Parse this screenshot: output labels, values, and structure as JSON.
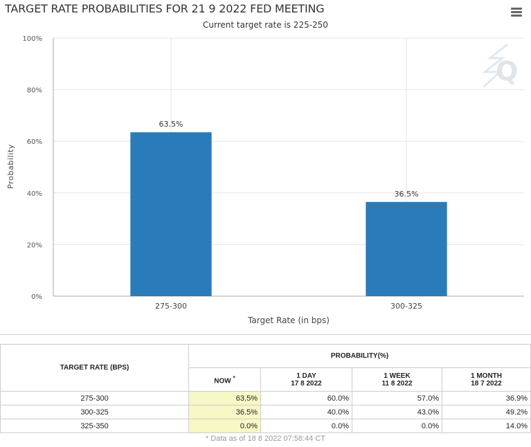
{
  "header": {
    "title": "TARGET RATE PROBABILITIES FOR 21 9 2022 FED MEETING",
    "subtitle": "Current target rate is 225-250",
    "menu_icon": "hamburger-menu-icon"
  },
  "colors": {
    "bar": "#2a7bb9",
    "grid": "#e6e6e6",
    "axis": "#aaaaaa",
    "now_highlight": "#f8f7c6"
  },
  "chart_data": {
    "type": "bar",
    "categories": [
      "275-300",
      "300-325"
    ],
    "values": [
      63.5,
      36.5
    ],
    "data_labels": [
      "63.5%",
      "36.5%"
    ],
    "xlabel": "Target Rate (in bps)",
    "ylabel": "Probability",
    "ylim": [
      0,
      100
    ],
    "yticks": [
      0,
      20,
      40,
      60,
      80,
      100
    ],
    "ytick_labels": [
      "0%",
      "20%",
      "40%",
      "60%",
      "80%",
      "100%"
    ],
    "grid": true
  },
  "table": {
    "rate_header": "TARGET RATE (BPS)",
    "prob_header": "PROBABILITY(%)",
    "cols": [
      {
        "label": "NOW",
        "sub": ""
      },
      {
        "label": "1 DAY",
        "sub": "17 8 2022"
      },
      {
        "label": "1 WEEK",
        "sub": "11 8 2022"
      },
      {
        "label": "1 MONTH",
        "sub": "18 7 2022"
      }
    ],
    "now_mark": "*",
    "rows": [
      {
        "rate": "275-300",
        "now": "63.5%",
        "day": "60.0%",
        "week": "57.0%",
        "month": "36.9%"
      },
      {
        "rate": "300-325",
        "now": "36.5%",
        "day": "40.0%",
        "week": "43.0%",
        "month": "49.2%"
      },
      {
        "rate": "325-350",
        "now": "0.0%",
        "day": "0.0%",
        "week": "0.0%",
        "month": "14.0%"
      }
    ],
    "footnote": "* Data as of 18 8 2022 07:58:44 CT"
  }
}
